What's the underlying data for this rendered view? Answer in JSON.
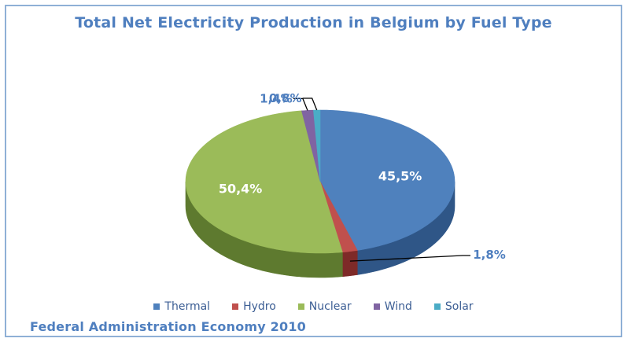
{
  "chart_data": {
    "type": "pie",
    "title": "Total Net Electricity Production in Belgium by Fuel Type",
    "source": "Federal Administration Economy 2010",
    "legend_position": "bottom",
    "series": [
      {
        "name": "Thermal",
        "value": 45.5,
        "label": "45,5%",
        "color": "#4f81bd",
        "side": "#2f5687"
      },
      {
        "name": "Hydro",
        "value": 1.8,
        "label": "1,8%",
        "color": "#c0504d",
        "side": "#7e2a28"
      },
      {
        "name": "Nuclear",
        "value": 50.4,
        "label": "50,4%",
        "color": "#9bbb59",
        "side": "#5e7a2f"
      },
      {
        "name": "Wind",
        "value": 1.4,
        "label": "1,4%",
        "color": "#8064a2",
        "side": "#4e3a68"
      },
      {
        "name": "Solar",
        "value": 0.8,
        "label": "0,8%",
        "color": "#4bacc6",
        "side": "#2b6f82"
      }
    ]
  }
}
